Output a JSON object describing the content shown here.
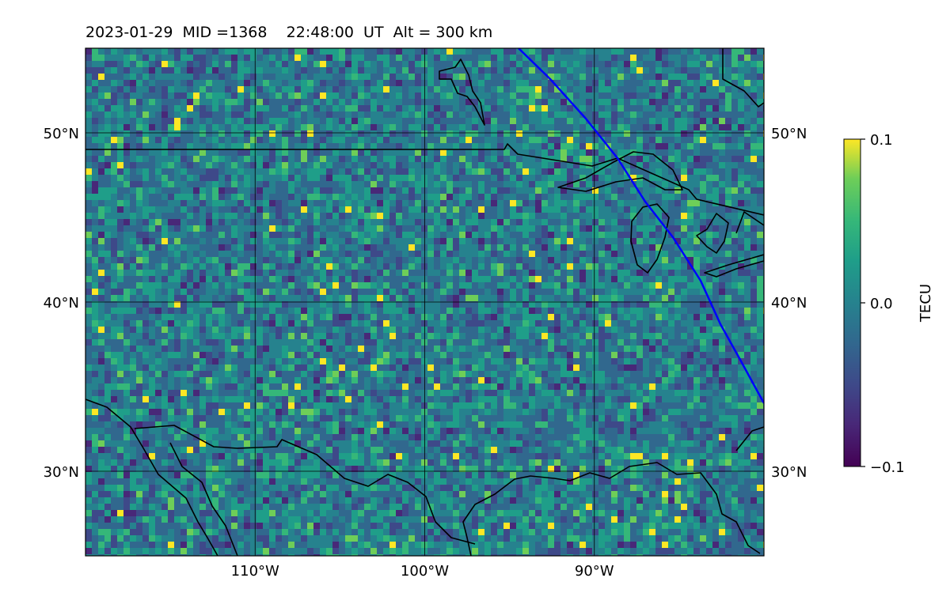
{
  "title": {
    "date": "2023-01-29",
    "mid": "MID =1368",
    "time": "22:48:00  UT",
    "alt": "Alt = 300 km"
  },
  "map": {
    "lon_range": [
      -120,
      -80
    ],
    "lat_range": [
      25,
      55
    ],
    "x_ticks": [
      {
        "lon": -110,
        "label": "110°W"
      },
      {
        "lon": -100,
        "label": "100°W"
      },
      {
        "lon": -90,
        "label": "90°W"
      }
    ],
    "y_ticks": [
      {
        "lat": 50,
        "label": "50°N"
      },
      {
        "lat": 40,
        "label": "40°N"
      },
      {
        "lat": 30,
        "label": "30°N"
      }
    ],
    "grid": true,
    "field": "TEC perturbation",
    "track_color": "#0000ff"
  },
  "colorbar": {
    "label": "TECU",
    "min": -0.1,
    "max": 0.1,
    "ticks": [
      {
        "value": 0.1,
        "label": "0.1"
      },
      {
        "value": 0.0,
        "label": "0.0"
      },
      {
        "value": -0.1,
        "label": "−0.1"
      }
    ],
    "colormap": "viridis"
  }
}
